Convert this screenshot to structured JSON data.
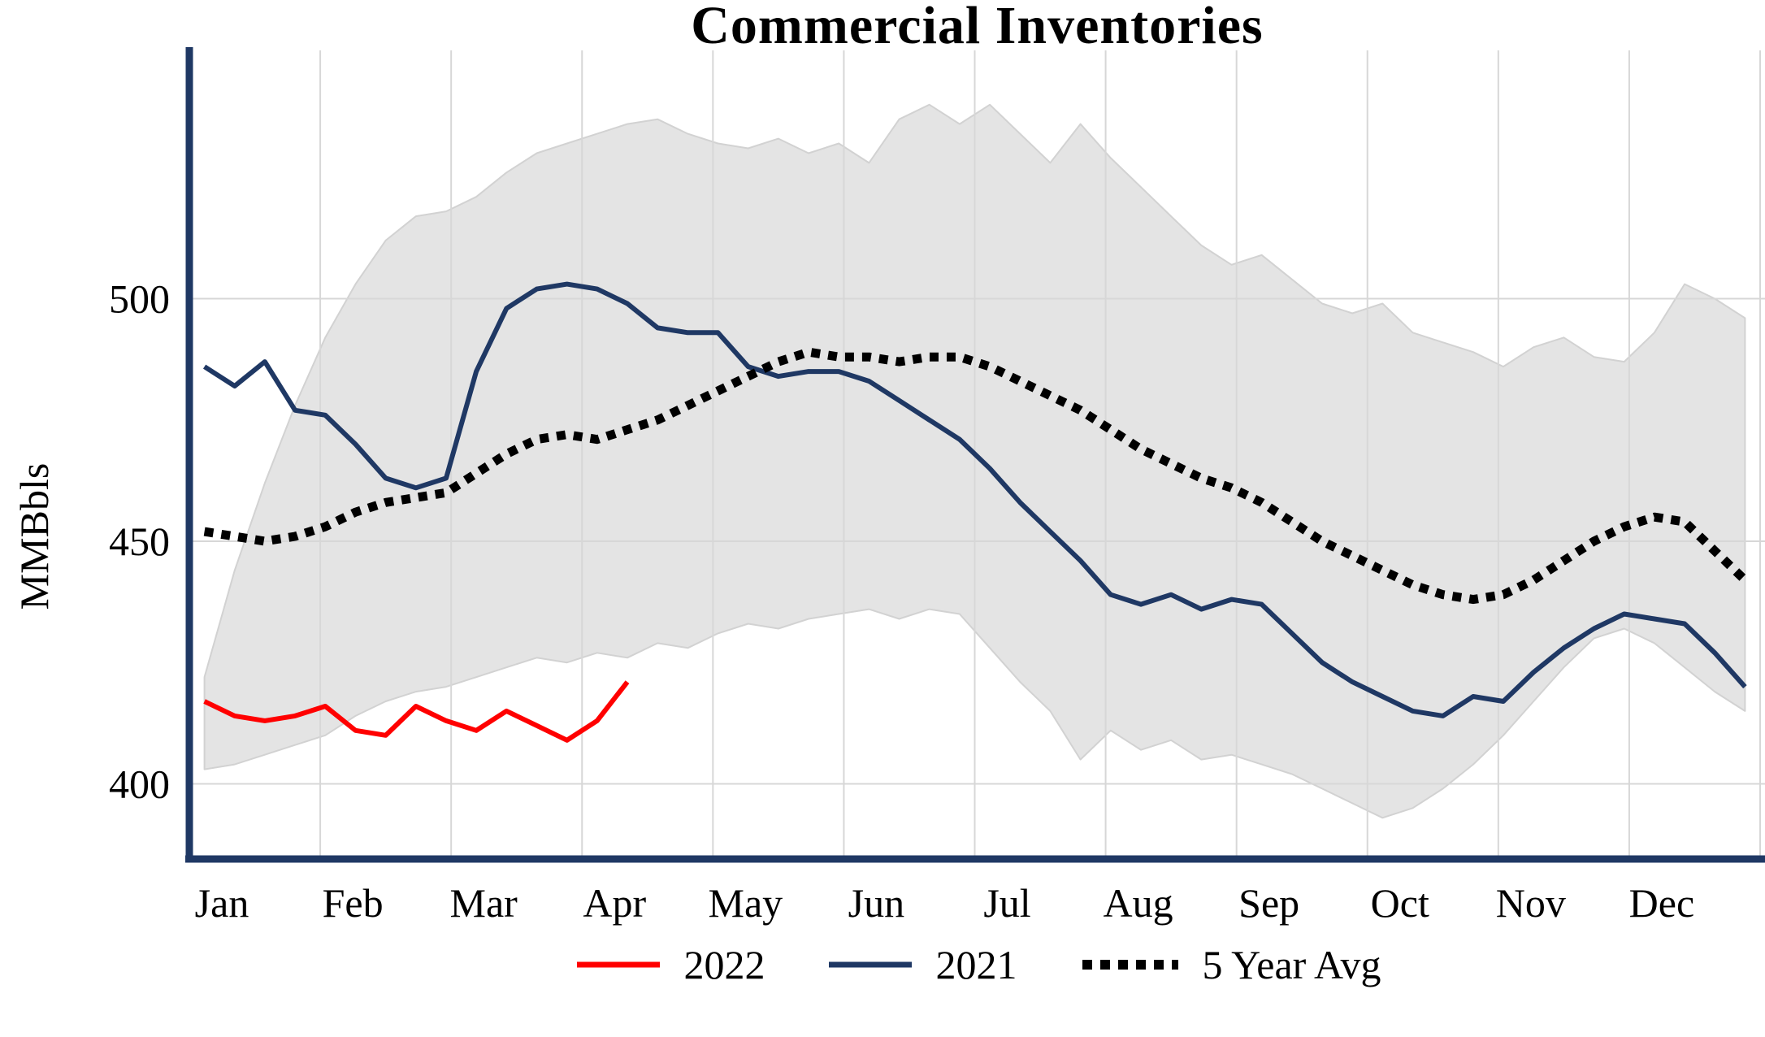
{
  "chart_data": {
    "type": "line",
    "title": "Commercial Inventories",
    "ylabel": "MMBbls",
    "months": [
      "Jan",
      "Feb",
      "Mar",
      "Apr",
      "May",
      "Jun",
      "Jul",
      "Aug",
      "Sep",
      "Oct",
      "Nov",
      "Dec"
    ],
    "yticks": [
      400,
      450,
      500
    ],
    "ylim": [
      384.5,
      547.5
    ],
    "weeks": 52,
    "grid": true,
    "grid_color": "#d7d7d7",
    "axis_color": "#1f3864",
    "legend_position": "bottom",
    "band": {
      "name": "5-year-range",
      "fill": "#e4e4e4",
      "edge": "#d2d2d2",
      "upper": [
        422,
        444,
        462,
        478,
        492,
        503,
        512,
        517,
        518,
        521,
        526,
        530,
        532,
        534,
        536,
        537,
        534,
        532,
        531,
        533,
        530,
        532,
        528,
        537,
        540,
        536,
        540,
        534,
        528,
        536,
        529,
        523,
        517,
        511,
        507,
        509,
        504,
        499,
        497,
        499,
        493,
        491,
        489,
        486,
        490,
        492,
        488,
        487,
        493,
        503,
        500,
        496
      ],
      "lower": [
        403,
        404,
        406,
        408,
        410,
        414,
        417,
        419,
        420,
        422,
        424,
        426,
        425,
        427,
        426,
        429,
        428,
        431,
        433,
        432,
        434,
        435,
        436,
        434,
        436,
        435,
        428,
        421,
        415,
        405,
        411,
        407,
        409,
        405,
        406,
        404,
        402,
        399,
        396,
        393,
        395,
        399,
        404,
        410,
        417,
        424,
        430,
        432,
        429,
        424,
        419,
        415
      ]
    },
    "series": [
      {
        "name": "2022",
        "color": "#ff0000",
        "style": "solid",
        "start_week": 1,
        "values": [
          417,
          414,
          413,
          414,
          416,
          411,
          410,
          416,
          413,
          411,
          415,
          412,
          409,
          413,
          421
        ]
      },
      {
        "name": "2021",
        "color": "#1f3864",
        "style": "solid",
        "start_week": 1,
        "values": [
          486,
          482,
          487,
          477,
          476,
          470,
          463,
          461,
          463,
          485,
          498,
          502,
          503,
          502,
          499,
          494,
          493,
          493,
          486,
          484,
          485,
          485,
          483,
          479,
          475,
          471,
          465,
          458,
          452,
          446,
          439,
          437,
          439,
          436,
          438,
          437,
          431,
          425,
          421,
          418,
          415,
          414,
          418,
          417,
          423,
          428,
          432,
          435,
          434,
          433,
          427,
          420
        ]
      },
      {
        "name": "5 Year Avg",
        "color": "#000000",
        "style": "dotted",
        "start_week": 1,
        "values": [
          452,
          451,
          450,
          451,
          453,
          456,
          458,
          459,
          460,
          464,
          468,
          471,
          472,
          471,
          473,
          475,
          478,
          481,
          484,
          487,
          489,
          488,
          488,
          487,
          488,
          488,
          486,
          483,
          480,
          477,
          473,
          469,
          466,
          463,
          461,
          458,
          454,
          450,
          447,
          444,
          441,
          439,
          438,
          439,
          442,
          446,
          450,
          453,
          455,
          454,
          448,
          442
        ]
      }
    ]
  }
}
